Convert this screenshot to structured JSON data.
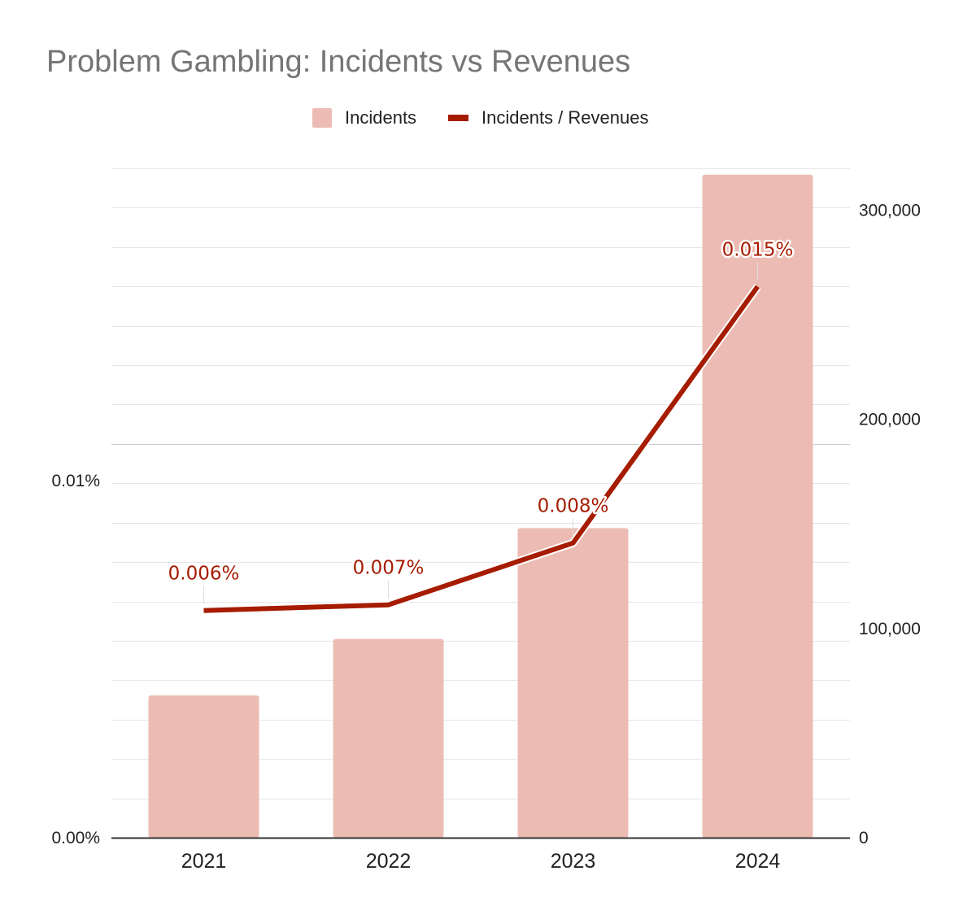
{
  "chart_data": {
    "type": "bar",
    "title": "Problem Gambling: Incidents vs Revenues",
    "categories": [
      "2021",
      "2022",
      "2023",
      "2024"
    ],
    "series": [
      {
        "name": "Incidents",
        "type": "bar",
        "axis": "right",
        "values": [
          68000,
          95000,
          148000,
          317000
        ],
        "color": "#ecbcb4"
      },
      {
        "name": "Incidents / Revenues",
        "type": "line",
        "axis": "left",
        "values": [
          6.36e-05,
          6.52e-05,
          8.25e-05,
          0.0001543
        ],
        "labels": [
          "0.006%",
          "0.007%",
          "0.008%",
          "0.015%"
        ],
        "color": "#a61c00"
      }
    ],
    "y_left": {
      "range": [
        0,
        0.0001874
      ],
      "ticks": [
        0,
        0.0001
      ],
      "tick_labels": [
        "0.00%",
        "0.01%"
      ]
    },
    "y_right": {
      "range": [
        0,
        320000
      ],
      "ticks": [
        0,
        100000,
        200000,
        300000
      ],
      "tick_labels": [
        "0",
        "100,000",
        "200,000",
        "300,000"
      ]
    },
    "grid": true,
    "legend": "top"
  }
}
